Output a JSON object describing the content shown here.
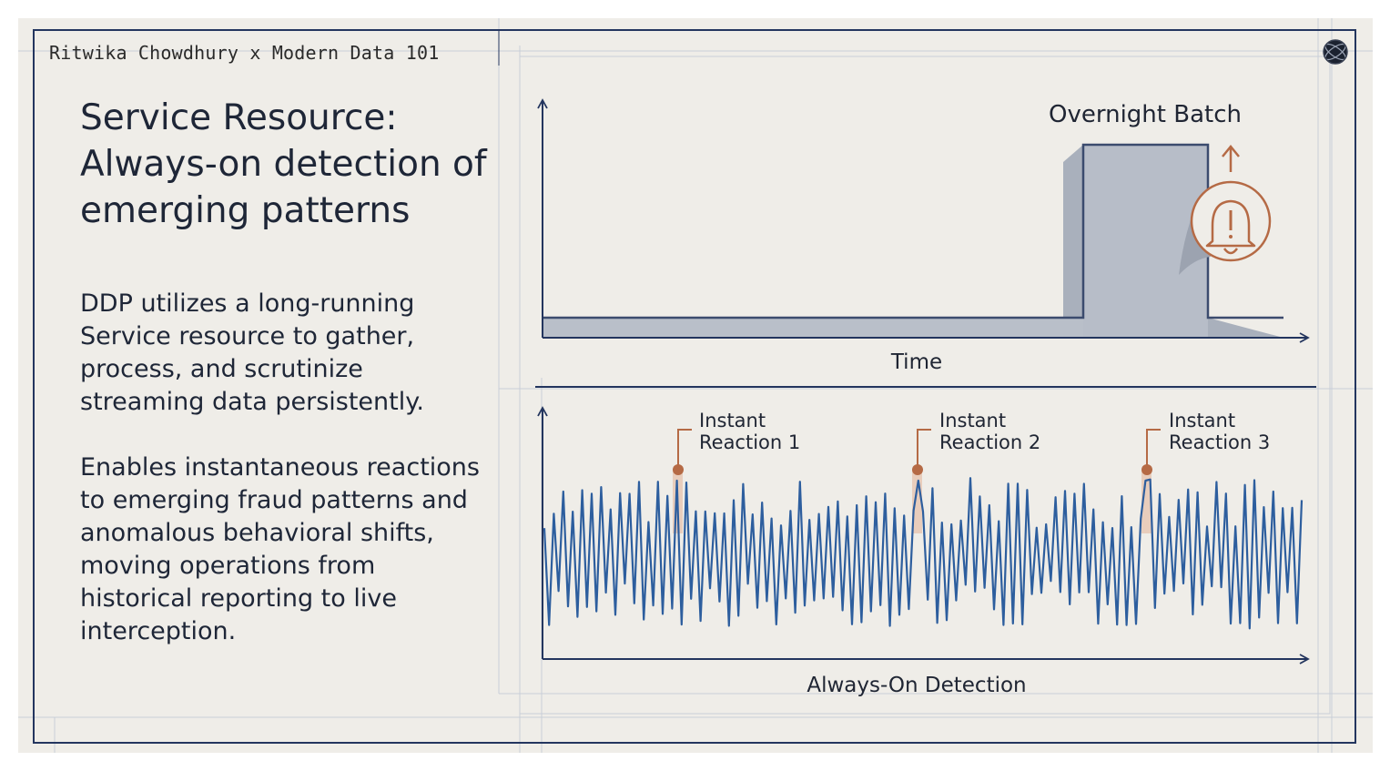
{
  "credit": "Ritwika Chowdhury x Modern Data 101",
  "title": "Service Resource: Always-on detection of emerging patterns",
  "paragraphs": [
    "DDP utilizes a long-running Service resource to gather, process, and scrutinize streaming data persistently.",
    "Enables instantaneous reactions to emerging fraud patterns and anomalous behavioral shifts, moving operations from historical reporting to live interception."
  ],
  "top_panel": {
    "label": "Overnight Batch",
    "x_axis_label": "Time",
    "icon": "bell-alert-icon"
  },
  "bottom_panel": {
    "reactions": [
      {
        "line1": "Instant",
        "line2": "Reaction 1"
      },
      {
        "line1": "Instant",
        "line2": "Reaction 2"
      },
      {
        "line1": "Instant",
        "line2": "Reaction 3"
      }
    ],
    "x_axis_label": "Always-On Detection"
  },
  "colors": {
    "navy": "#23355e",
    "signal": "#2d5e9e",
    "accent": "#b56a45",
    "batch_fill": "#b9bfc9",
    "background": "#efede8"
  },
  "logo_icon": "globe-icon"
}
